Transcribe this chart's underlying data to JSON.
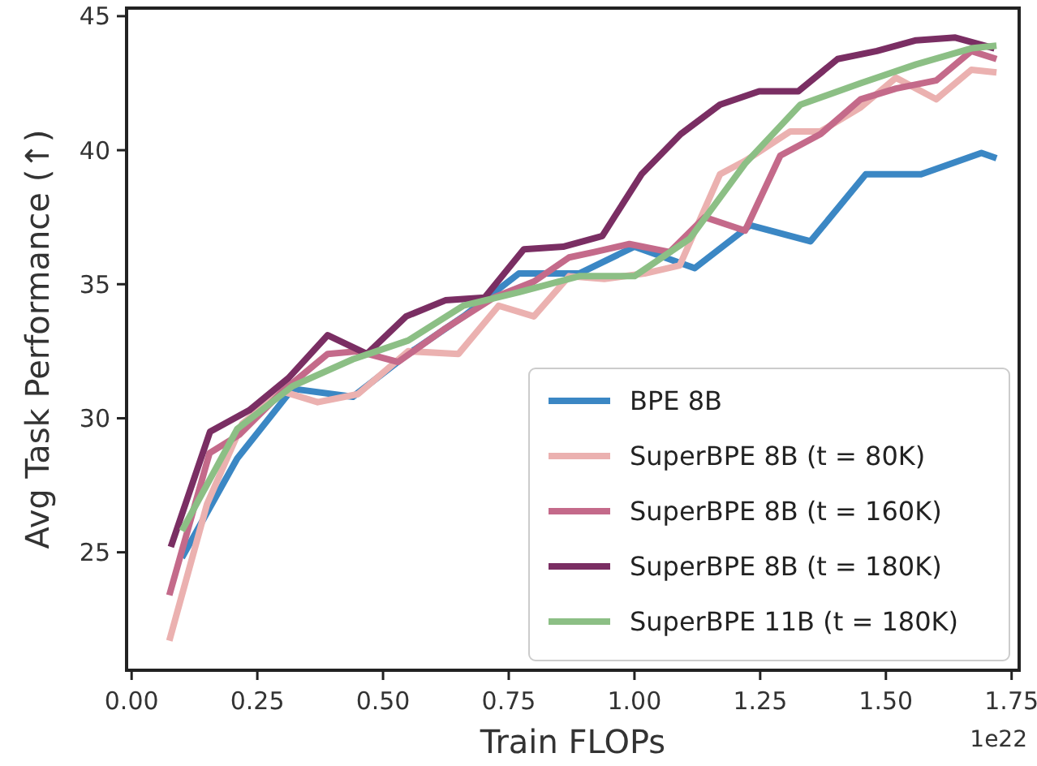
{
  "chart_data": {
    "type": "line",
    "xlabel": "Train FLOPs",
    "ylabel": "Avg Task Performance (↑)",
    "annotations": [
      "1e22"
    ],
    "xlim": [
      -0.01,
      1.765
    ],
    "xticks": [
      {
        "value": 0,
        "label": "0.00"
      },
      {
        "value": 0.25,
        "label": "0.25"
      },
      {
        "value": 0.5,
        "label": "0.50"
      },
      {
        "value": 0.75,
        "label": "0.75"
      },
      {
        "value": 1,
        "label": "1.00"
      },
      {
        "value": 1.25,
        "label": "1.25"
      },
      {
        "value": 1.5,
        "label": "1.50"
      },
      {
        "value": 1.75,
        "label": "1.75"
      }
    ],
    "ylim": [
      20.6,
      45.3
    ],
    "yticks": [
      25,
      30,
      35,
      40,
      45
    ],
    "grid": false,
    "legend": "bottom right",
    "marker": "none",
    "line_style": "solid",
    "series": [
      {
        "name": "BPE 8B",
        "color": "#3b87c4",
        "x": [
          0.1,
          0.21,
          0.32,
          0.44,
          0.55,
          0.66,
          0.77,
          0.89,
          1.0,
          1.12,
          1.23,
          1.35,
          1.46,
          1.57,
          1.69,
          1.72
        ],
        "values": [
          24.8,
          28.5,
          31.1,
          30.8,
          32.4,
          33.8,
          35.4,
          35.4,
          36.4,
          35.6,
          37.2,
          36.6,
          39.1,
          39.1,
          39.9,
          39.7
        ]
      },
      {
        "name": "SuperBPE 8B (t = 80K)",
        "color": "#ebb1b0",
        "x": [
          0.075,
          0.15,
          0.22,
          0.3,
          0.37,
          0.45,
          0.55,
          0.65,
          0.73,
          0.8,
          0.87,
          0.94,
          1.02,
          1.09,
          1.17,
          1.22,
          1.31,
          1.37,
          1.45,
          1.52,
          1.6,
          1.67,
          1.72
        ],
        "values": [
          21.7,
          26.8,
          29.8,
          31.0,
          30.6,
          30.9,
          32.5,
          32.4,
          34.2,
          33.8,
          35.3,
          35.2,
          35.4,
          35.7,
          39.1,
          39.6,
          40.7,
          40.7,
          41.6,
          42.7,
          41.9,
          43.0,
          42.9
        ]
      },
      {
        "name": "SuperBPE 8B (t = 160K)",
        "color": "#c46a8a",
        "x": [
          0.075,
          0.155,
          0.215,
          0.3,
          0.39,
          0.45,
          0.53,
          0.62,
          0.72,
          0.8,
          0.87,
          0.92,
          0.99,
          1.07,
          1.14,
          1.22,
          1.29,
          1.37,
          1.45,
          1.52,
          1.6,
          1.67,
          1.72
        ],
        "values": [
          23.4,
          28.7,
          29.4,
          31.0,
          32.4,
          32.5,
          32.1,
          33.3,
          34.5,
          35.1,
          36.0,
          36.2,
          36.5,
          36.2,
          37.5,
          37.0,
          39.8,
          40.6,
          41.9,
          42.3,
          42.6,
          43.7,
          43.4
        ]
      },
      {
        "name": "SuperBPE 8B (t = 180K)",
        "color": "#7a2e63",
        "x": [
          0.078,
          0.156,
          0.234,
          0.312,
          0.39,
          0.468,
          0.546,
          0.624,
          0.702,
          0.78,
          0.858,
          0.936,
          1.014,
          1.092,
          1.17,
          1.248,
          1.326,
          1.404,
          1.482,
          1.56,
          1.638,
          1.716
        ],
        "values": [
          25.2,
          29.5,
          30.3,
          31.5,
          33.1,
          32.4,
          33.8,
          34.4,
          34.5,
          36.3,
          36.4,
          36.8,
          39.1,
          40.6,
          41.7,
          42.2,
          42.2,
          43.4,
          43.7,
          44.1,
          44.2,
          43.8
        ]
      },
      {
        "name": "SuperBPE 11B (t = 180K)",
        "color": "#8cbf85",
        "x": [
          0.1,
          0.21,
          0.32,
          0.44,
          0.55,
          0.66,
          0.77,
          0.89,
          1.0,
          1.11,
          1.22,
          1.33,
          1.45,
          1.56,
          1.67,
          1.72
        ],
        "values": [
          25.8,
          29.6,
          31.2,
          32.2,
          32.9,
          34.2,
          34.7,
          35.3,
          35.3,
          36.7,
          39.5,
          41.7,
          42.5,
          43.2,
          43.8,
          43.9
        ]
      }
    ]
  }
}
